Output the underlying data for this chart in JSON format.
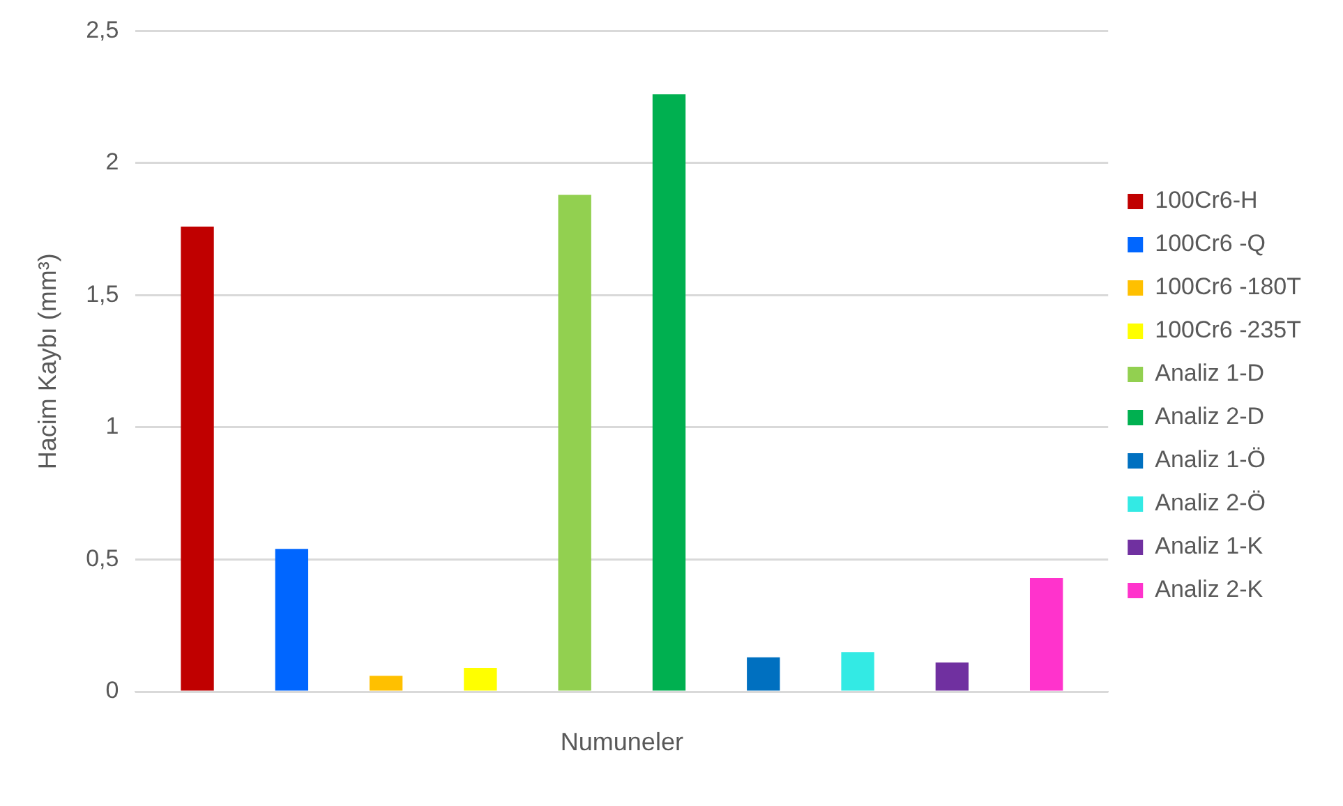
{
  "chart_data": {
    "type": "bar",
    "xlabel": "Numuneler",
    "ylabel": "Hacim Kaybı (mm³)",
    "categories": [
      null
    ],
    "series": [
      {
        "name": "100Cr6-H",
        "color": "#c00000",
        "values": [
          1.76
        ]
      },
      {
        "name": "100Cr6 -Q",
        "color": "#0066ff",
        "values": [
          0.54
        ]
      },
      {
        "name": "100Cr6 -180T",
        "color": "#ffc000",
        "values": [
          0.06
        ]
      },
      {
        "name": "100Cr6 -235T",
        "color": "#ffff00",
        "values": [
          0.09
        ]
      },
      {
        "name": "Analiz 1-D",
        "color": "#92d050",
        "values": [
          1.88
        ]
      },
      {
        "name": "Analiz 2-D",
        "color": "#00b050",
        "values": [
          2.26
        ]
      },
      {
        "name": "Analiz 1-Ö",
        "color": "#0070c0",
        "values": [
          0.13
        ]
      },
      {
        "name": "Analiz 2-Ö",
        "color": "#33eae4",
        "values": [
          0.15
        ]
      },
      {
        "name": "Analiz 1-K",
        "color": "#7030a0",
        "values": [
          0.11
        ]
      },
      {
        "name": "Analiz 2-K",
        "color": "#ff33cc",
        "values": [
          0.43
        ]
      }
    ],
    "ylim": [
      0,
      2.5
    ],
    "yticks": [
      {
        "value": 0,
        "label": "0"
      },
      {
        "value": 0.5,
        "label": "0,5"
      },
      {
        "value": 1,
        "label": "1"
      },
      {
        "value": 1.5,
        "label": "1,5"
      },
      {
        "value": 2,
        "label": "2"
      },
      {
        "value": 2.5,
        "label": "2,5"
      }
    ],
    "grid": "y",
    "legend": "right"
  }
}
